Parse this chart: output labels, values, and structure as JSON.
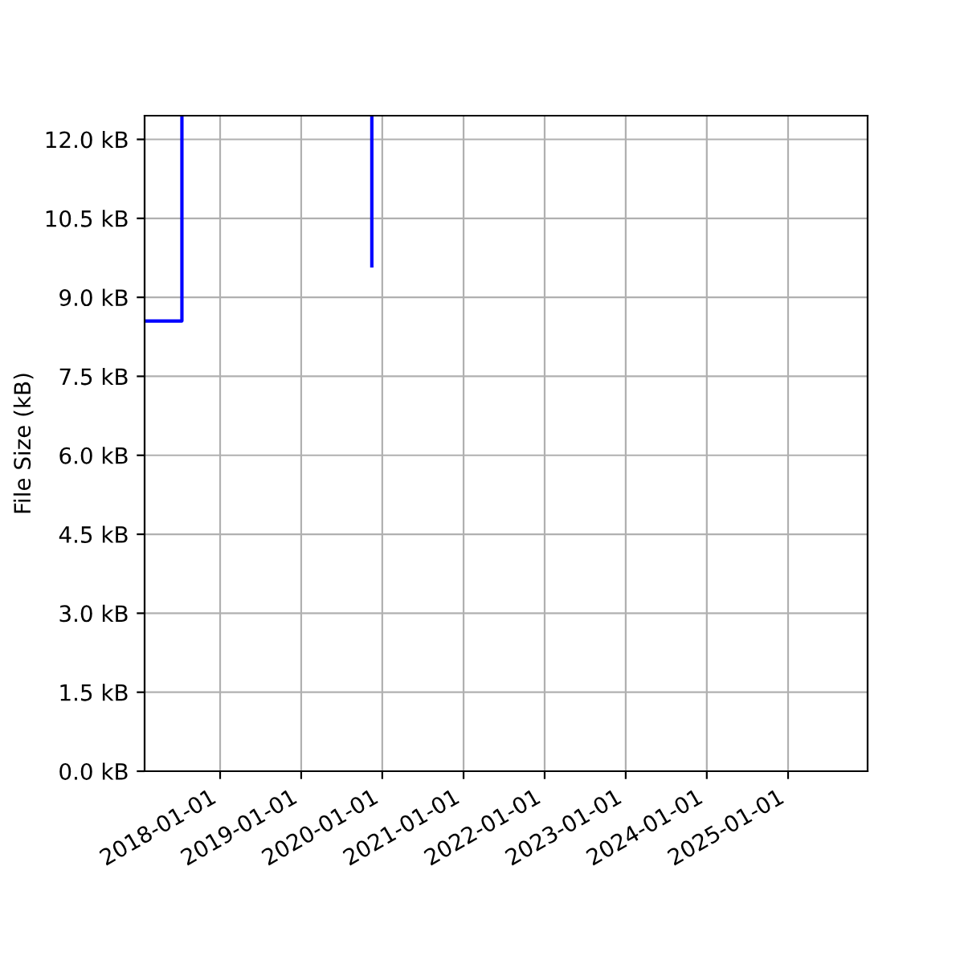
{
  "chart_data": {
    "type": "step",
    "ylabel": "File Size (kB)",
    "series": [
      {
        "color": "#0000ff",
        "x": [
          "2017-01-26",
          "2017-07-13",
          "2017-07-13"
        ],
        "values": [
          8.55,
          8.55,
          12.45
        ]
      },
      {
        "color": "#0000ff",
        "type": "line",
        "x": [
          "2019-11-15",
          "2019-11-15"
        ],
        "values": [
          12.45,
          9.6
        ]
      }
    ],
    "xlim": [
      "2017-01-26",
      "2025-12-25"
    ],
    "xticks": [
      "2018-01-01",
      "2019-01-01",
      "2020-01-01",
      "2021-01-01",
      "2022-01-01",
      "2023-01-01",
      "2024-01-01",
      "2025-01-01"
    ],
    "ylim": [
      0,
      12.45
    ],
    "yticks": [
      {
        "value": 0,
        "label": "0.0 kB"
      },
      {
        "value": 1.5,
        "label": "1.5 kB"
      },
      {
        "value": 3,
        "label": "3.0 kB"
      },
      {
        "value": 4.5,
        "label": "4.5 kB"
      },
      {
        "value": 6,
        "label": "6.0 kB"
      },
      {
        "value": 7.5,
        "label": "7.5 kB"
      },
      {
        "value": 9,
        "label": "9.0 kB"
      },
      {
        "value": 10.5,
        "label": "10.5 kB"
      },
      {
        "value": 12,
        "label": "12.0 kB"
      }
    ],
    "grid": true,
    "line_style": "solid"
  }
}
